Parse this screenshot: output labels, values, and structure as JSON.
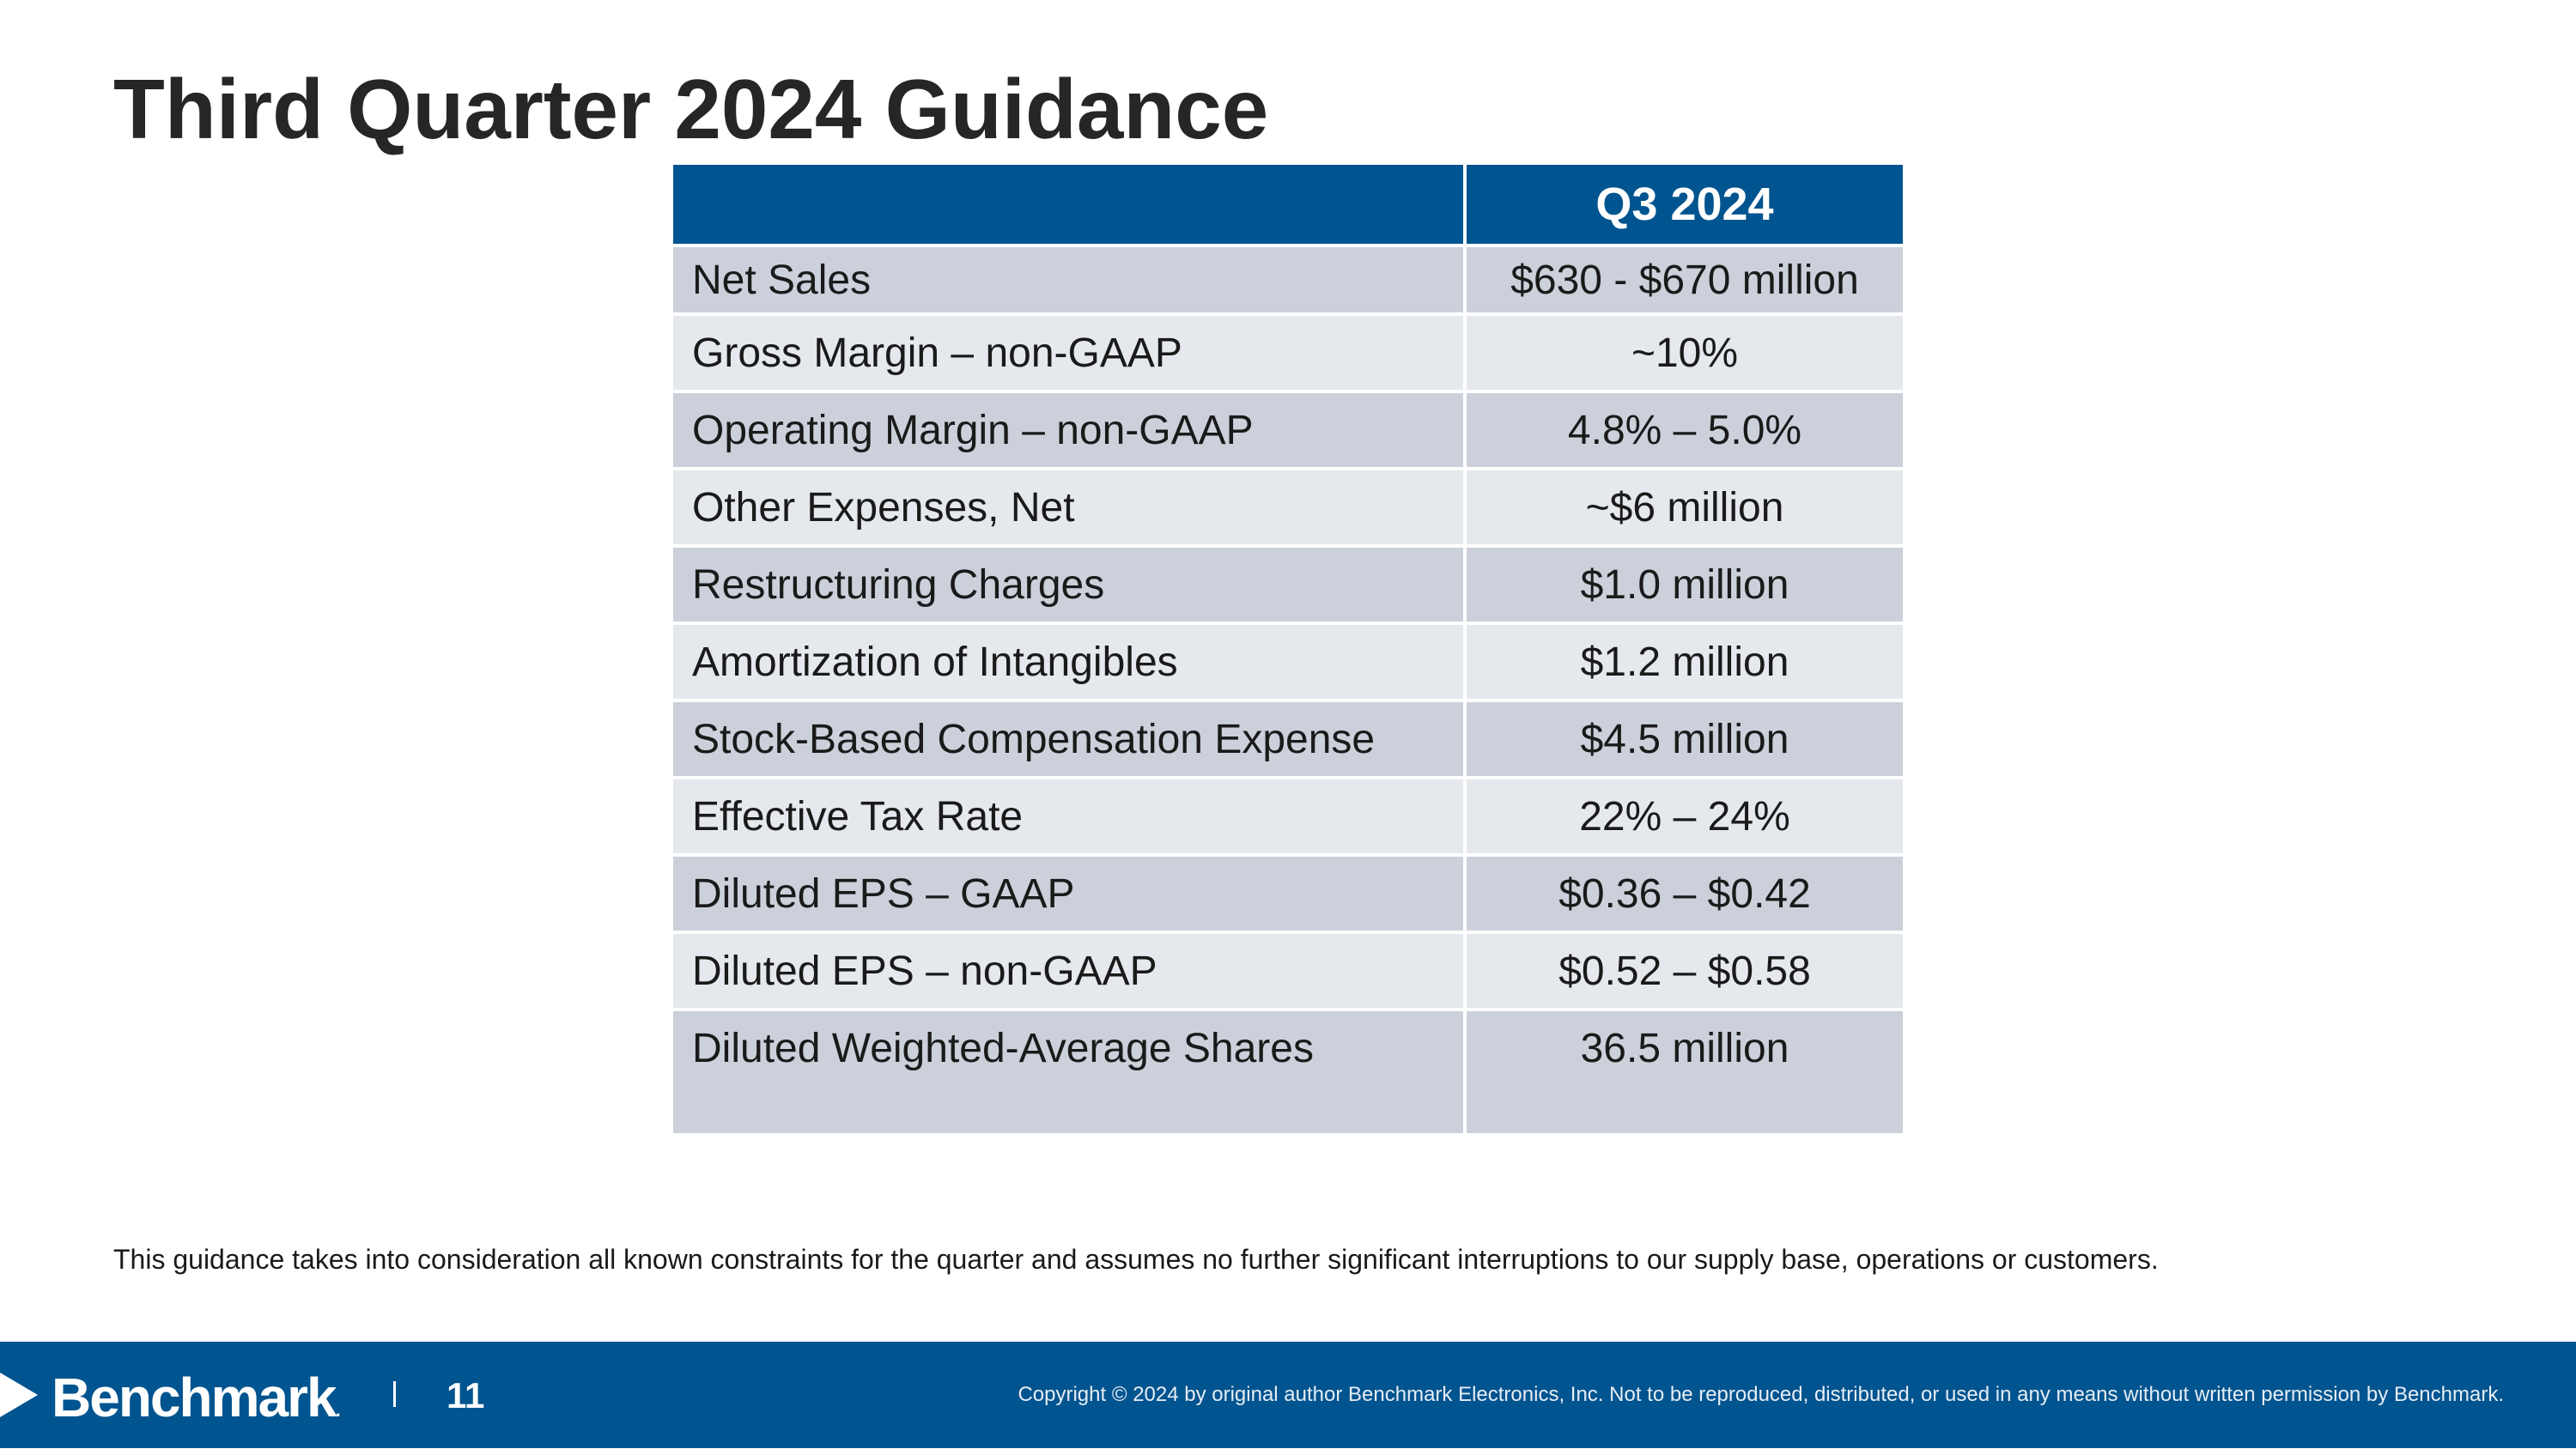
{
  "slide": {
    "title": "Third Quarter 2024 Guidance"
  },
  "table": {
    "header": {
      "metric": "",
      "period": "Q3 2024"
    },
    "rows": [
      {
        "metric": "Net Sales",
        "value": "$630 - $670 million"
      },
      {
        "metric": "Gross Margin – non-GAAP",
        "value": "~10%"
      },
      {
        "metric": "Operating Margin – non-GAAP",
        "value": "4.8% – 5.0%"
      },
      {
        "metric": "Other Expenses, Net",
        "value": "~$6 million"
      },
      {
        "metric": "Restructuring Charges",
        "value": "$1.0 million"
      },
      {
        "metric": "Amortization of Intangibles",
        "value": "$1.2 million"
      },
      {
        "metric": "Stock-Based Compensation Expense",
        "value": "$4.5 million"
      },
      {
        "metric": "Effective Tax Rate",
        "value": "22% – 24%"
      },
      {
        "metric": "Diluted EPS – GAAP",
        "value": "$0.36 – $0.42"
      },
      {
        "metric": "Diluted EPS – non-GAAP",
        "value": "$0.52 – $0.58"
      },
      {
        "metric": "Diluted Weighted-Average Shares",
        "value": "36.5 million"
      }
    ]
  },
  "disclaimer": "This guidance takes into consideration all known constraints for the quarter and assumes no further significant interruptions to our supply base, operations or customers.",
  "footer": {
    "logo_text": "Benchmark",
    "logo_mark": ".",
    "page_number": "11",
    "copyright": "Copyright © 2024 by original author Benchmark Electronics, Inc. Not to be reproduced, distributed, or used in any means without written permission by Benchmark."
  },
  "colors": {
    "brand_blue": "#00548f",
    "row_dark": "#cbd0da",
    "row_light": "#e5e8ec"
  }
}
